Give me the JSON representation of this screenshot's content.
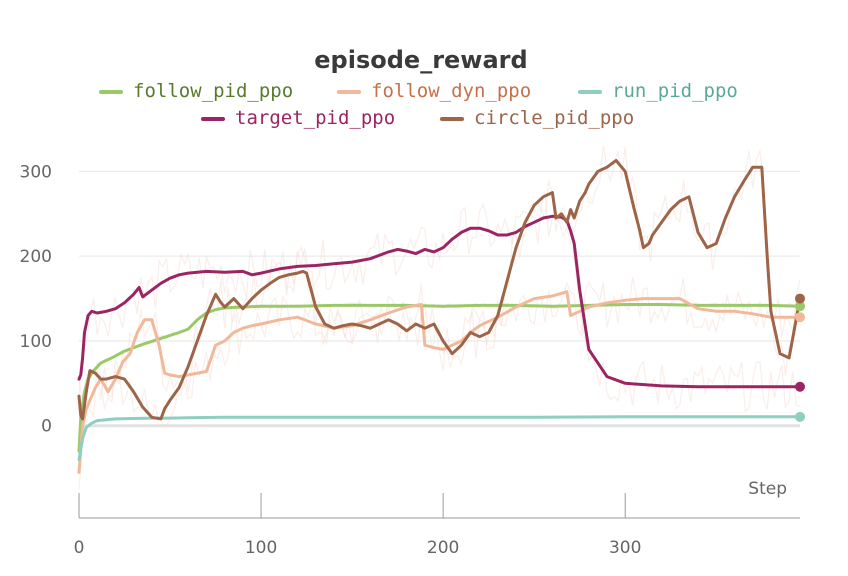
{
  "chart_data": {
    "type": "line",
    "title": "episode_reward",
    "xlabel": "Step",
    "ylabel": "",
    "xlim": [
      0,
      396
    ],
    "ylim": [
      -100,
      340
    ],
    "x_ticks": [
      0,
      100,
      200,
      300
    ],
    "y_ticks": [
      0,
      100,
      200,
      300
    ],
    "grid": true,
    "legend_position": "top",
    "series": [
      {
        "name": "follow_pid_ppo",
        "color": "#9bc96a",
        "label_color": "#5a7a2e",
        "x": [
          0,
          1,
          3,
          5,
          8,
          12,
          18,
          25,
          35,
          45,
          55,
          60,
          65,
          70,
          75,
          80,
          90,
          100,
          120,
          140,
          160,
          180,
          200,
          220,
          240,
          260,
          280,
          300,
          320,
          340,
          360,
          380,
          396
        ],
        "y": [
          -30,
          10,
          40,
          55,
          65,
          74,
          80,
          88,
          96,
          103,
          110,
          114,
          125,
          133,
          137,
          139,
          140,
          141,
          141,
          142,
          142,
          142,
          141,
          142,
          142,
          141,
          142,
          143,
          143,
          142,
          142,
          142,
          141
        ]
      },
      {
        "name": "follow_dyn_ppo",
        "color": "#f2b89a",
        "label_color": "#c8704a",
        "x": [
          0,
          2,
          4,
          6,
          9,
          12,
          16,
          20,
          24,
          28,
          32,
          36,
          40,
          44,
          47,
          50,
          55,
          60,
          65,
          70,
          75,
          80,
          85,
          90,
          95,
          100,
          110,
          120,
          130,
          140,
          150,
          160,
          170,
          180,
          188,
          190,
          195,
          200,
          205,
          210,
          215,
          220,
          230,
          240,
          250,
          260,
          268,
          270,
          275,
          280,
          290,
          300,
          310,
          320,
          330,
          340,
          350,
          360,
          370,
          380,
          396
        ],
        "y": [
          -55,
          0,
          20,
          30,
          45,
          55,
          40,
          55,
          75,
          85,
          110,
          125,
          125,
          95,
          62,
          60,
          58,
          60,
          62,
          64,
          95,
          100,
          110,
          115,
          118,
          120,
          125,
          128,
          120,
          115,
          118,
          125,
          133,
          140,
          143,
          95,
          92,
          90,
          95,
          100,
          110,
          118,
          128,
          140,
          150,
          153,
          158,
          130,
          135,
          140,
          145,
          148,
          150,
          150,
          150,
          138,
          135,
          135,
          132,
          128,
          128
        ]
      },
      {
        "name": "run_pid_ppo",
        "color": "#8ecfc0",
        "label_color": "#5aa898",
        "x": [
          0,
          2,
          4,
          7,
          10,
          15,
          20,
          30,
          40,
          50,
          60,
          80,
          100,
          150,
          200,
          250,
          300,
          350,
          396
        ],
        "y": [
          -40,
          -15,
          -2,
          3,
          6,
          7,
          8,
          8.5,
          9,
          9,
          9.5,
          10,
          10,
          10,
          10,
          10,
          10.5,
          10.5,
          10.5
        ]
      },
      {
        "name": "target_pid_ppo",
        "color": "#9b2562",
        "label_color": "#9b2562",
        "x": [
          0,
          1,
          2,
          3,
          5,
          7,
          10,
          15,
          20,
          25,
          30,
          33,
          35,
          40,
          45,
          50,
          55,
          60,
          70,
          80,
          90,
          95,
          100,
          110,
          120,
          130,
          140,
          150,
          160,
          170,
          175,
          180,
          185,
          190,
          195,
          200,
          205,
          210,
          215,
          220,
          225,
          230,
          235,
          240,
          245,
          250,
          255,
          260,
          265,
          268,
          270,
          272,
          275,
          280,
          290,
          300,
          320,
          340,
          360,
          380,
          396
        ],
        "y": [
          55,
          60,
          80,
          110,
          130,
          135,
          133,
          135,
          138,
          145,
          155,
          163,
          152,
          160,
          168,
          174,
          178,
          180,
          182,
          181,
          182,
          178,
          180,
          185,
          188,
          189,
          191,
          193,
          197,
          205,
          208,
          206,
          203,
          208,
          205,
          210,
          220,
          228,
          233,
          233,
          230,
          225,
          225,
          228,
          235,
          240,
          245,
          247,
          246,
          242,
          230,
          215,
          160,
          90,
          58,
          50,
          47,
          46,
          46,
          46,
          46
        ]
      },
      {
        "name": "circle_pid_ppo",
        "color": "#9e6448",
        "label_color": "#9e6448",
        "x": [
          0,
          1,
          2,
          4,
          6,
          9,
          12,
          15,
          20,
          25,
          30,
          35,
          40,
          45,
          47,
          50,
          55,
          60,
          65,
          70,
          75,
          78,
          80,
          85,
          90,
          95,
          100,
          105,
          110,
          115,
          120,
          123,
          125,
          130,
          135,
          140,
          145,
          150,
          155,
          160,
          165,
          170,
          175,
          180,
          185,
          190,
          195,
          200,
          205,
          210,
          215,
          220,
          225,
          230,
          235,
          240,
          245,
          250,
          255,
          260,
          262,
          265,
          268,
          270,
          272,
          275,
          278,
          280,
          285,
          290,
          295,
          300,
          305,
          308,
          310,
          313,
          315,
          320,
          325,
          330,
          335,
          340,
          345,
          350,
          355,
          360,
          365,
          368,
          370,
          373,
          375,
          378,
          380,
          385,
          390,
          396
        ],
        "y": [
          35,
          12,
          8,
          40,
          65,
          62,
          55,
          55,
          58,
          55,
          40,
          22,
          10,
          8,
          20,
          30,
          45,
          70,
          100,
          130,
          155,
          145,
          140,
          150,
          138,
          150,
          160,
          168,
          175,
          178,
          180,
          182,
          180,
          140,
          120,
          115,
          118,
          120,
          118,
          115,
          120,
          125,
          120,
          112,
          120,
          115,
          120,
          100,
          85,
          95,
          110,
          105,
          110,
          130,
          170,
          210,
          240,
          260,
          270,
          275,
          245,
          250,
          240,
          255,
          245,
          265,
          275,
          285,
          300,
          305,
          313,
          300,
          255,
          230,
          210,
          215,
          225,
          240,
          255,
          265,
          270,
          228,
          210,
          215,
          245,
          270,
          288,
          298,
          305,
          305,
          305,
          200,
          135,
          85,
          80,
          150
        ]
      }
    ]
  }
}
